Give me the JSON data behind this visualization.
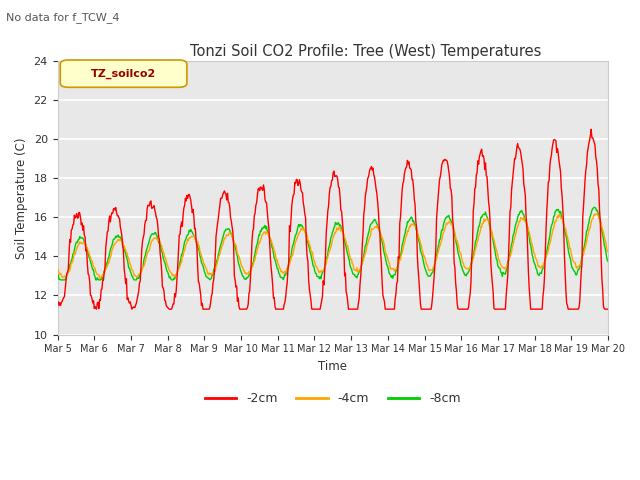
{
  "title": "Tonzi Soil CO2 Profile: Tree (West) Temperatures",
  "no_data_label": "No data for f_TCW_4",
  "ylabel": "Soil Temperature (C)",
  "xlabel": "Time",
  "legend_label": "TZ_soilco2",
  "ylim": [
    10,
    24
  ],
  "yticks": [
    10,
    12,
    14,
    16,
    18,
    20,
    22,
    24
  ],
  "series_labels": [
    "-2cm",
    "-4cm",
    "-8cm"
  ],
  "series_colors": [
    "#ff0000",
    "#ffa500",
    "#00cc00"
  ],
  "bg_color": "#ffffff",
  "plot_bg_color": "#e8e8e8",
  "grid_color": "#ffffff",
  "tick_dates": [
    "Mar 5",
    "Mar 6",
    "Mar 7",
    "Mar 8",
    "Mar 9",
    "Mar 10",
    "Mar 11",
    "Mar 12",
    "Mar 13",
    "Mar 14",
    "Mar 15",
    "Mar 16",
    "Mar 17",
    "Mar 18",
    "Mar 19",
    "Mar 20"
  ]
}
